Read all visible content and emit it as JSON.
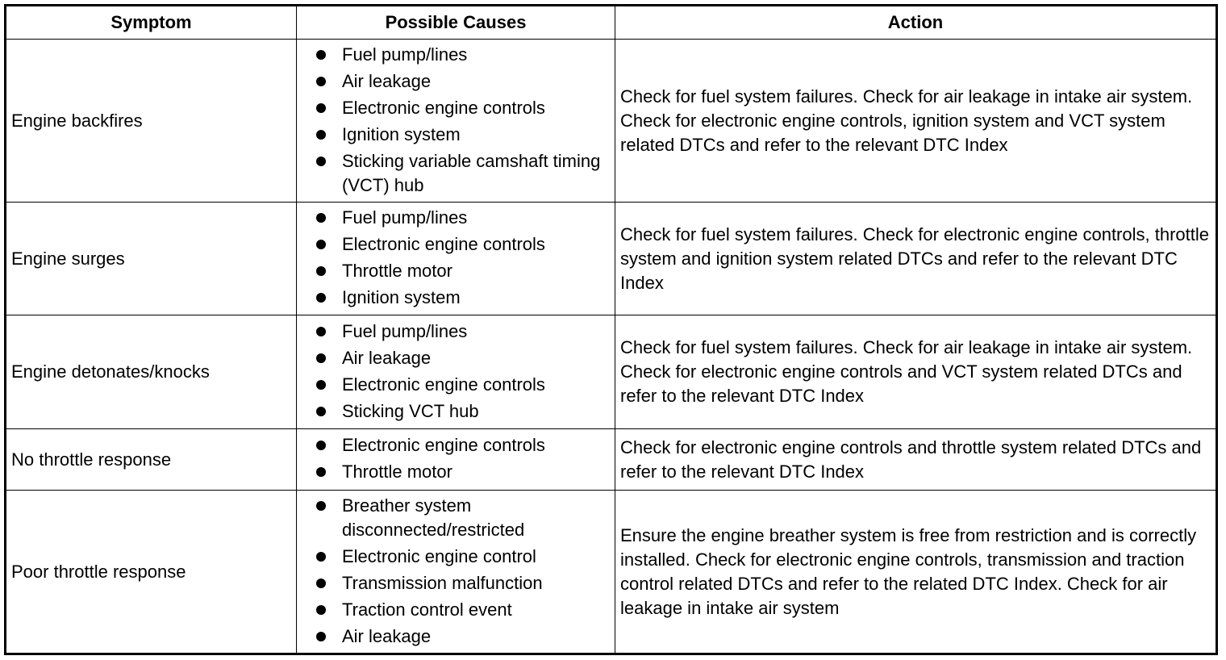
{
  "headers": [
    "Symptom",
    "Possible Causes",
    "Action"
  ],
  "rows": [
    {
      "symptom": "Engine backfires",
      "causes": [
        "Fuel pump/lines",
        "Air leakage",
        "Electronic engine controls",
        "Ignition system",
        "Sticking variable camshaft timing (VCT) hub"
      ],
      "action": "Check for fuel system failures. Check for air leakage in intake air system. Check for electronic engine controls, ignition system and VCT system related DTCs and refer to the relevant DTC Index"
    },
    {
      "symptom": "Engine surges",
      "causes": [
        "Fuel pump/lines",
        "Electronic engine controls",
        "Throttle motor",
        "Ignition system"
      ],
      "action": "Check for fuel system failures. Check for electronic engine controls, throttle system and ignition system related DTCs and refer to the relevant DTC Index"
    },
    {
      "symptom": "Engine detonates/knocks",
      "causes": [
        "Fuel pump/lines",
        "Air leakage",
        "Electronic engine controls",
        "Sticking VCT hub"
      ],
      "action": "Check for fuel system failures. Check for air leakage in intake air system. Check for electronic engine controls and VCT system related DTCs and refer to the relevant DTC Index"
    },
    {
      "symptom": "No throttle response",
      "causes": [
        "Electronic engine controls",
        "Throttle motor"
      ],
      "action": "Check for electronic engine controls and throttle system related DTCs and refer to the relevant DTC Index"
    },
    {
      "symptom": "Poor throttle response",
      "causes": [
        "Breather system disconnected/restricted",
        "Electronic engine control",
        "Transmission malfunction",
        "Traction control event",
        "Air leakage"
      ],
      "action": "Ensure the engine breather system is free from restriction and is correctly installed. Check for electronic engine controls, transmission and traction control related DTCs and refer to the related DTC Index. Check for air leakage in intake air system"
    }
  ]
}
